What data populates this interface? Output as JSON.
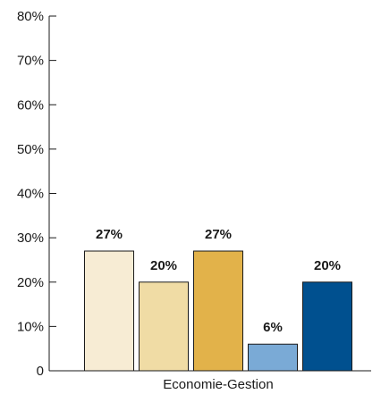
{
  "chart_data": {
    "type": "bar",
    "categories": [
      "Economie-Gestion"
    ],
    "series": [
      {
        "values": [
          27
        ],
        "color": "#f7ecd4",
        "label": "27%"
      },
      {
        "values": [
          20
        ],
        "color": "#f0dca5",
        "label": "20%"
      },
      {
        "values": [
          27
        ],
        "color": "#e2b24a",
        "label": "27%"
      },
      {
        "values": [
          6
        ],
        "color": "#7aaad6",
        "label": "6%"
      },
      {
        "values": [
          20
        ],
        "color": "#00508f",
        "label": "20%"
      }
    ],
    "ylim": [
      0,
      80
    ],
    "yticks": [
      0,
      10,
      20,
      30,
      40,
      50,
      60,
      70,
      80
    ],
    "ytick_labels": [
      "0",
      "10%",
      "20%",
      "30%",
      "40%",
      "50%",
      "60%",
      "70%",
      "80%"
    ],
    "title": "",
    "xlabel": "",
    "ylabel": "",
    "grid": false,
    "legend": "none"
  }
}
